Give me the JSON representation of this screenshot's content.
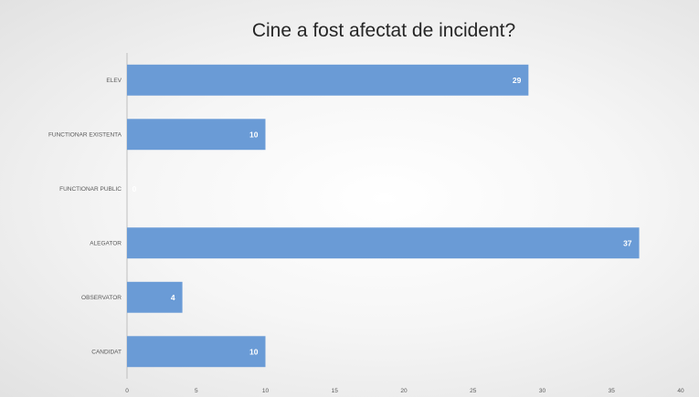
{
  "chart_data": {
    "type": "bar",
    "orientation": "horizontal",
    "title": "Cine a fost afectat de incident?",
    "categories": [
      "ELEV",
      "FUNCTIONAR EXISTENTA",
      "FUNCTIONAR PUBLIC",
      "ALEGATOR",
      "OBSERVATOR",
      "CANDIDAT"
    ],
    "values": [
      29,
      10,
      0,
      37,
      4,
      10
    ],
    "xlim": [
      0,
      40
    ],
    "xticks": [
      0,
      5,
      10,
      15,
      20,
      25,
      30,
      35,
      40
    ],
    "grid": false,
    "legend": "none",
    "bar_color": "#6a9bd6"
  }
}
